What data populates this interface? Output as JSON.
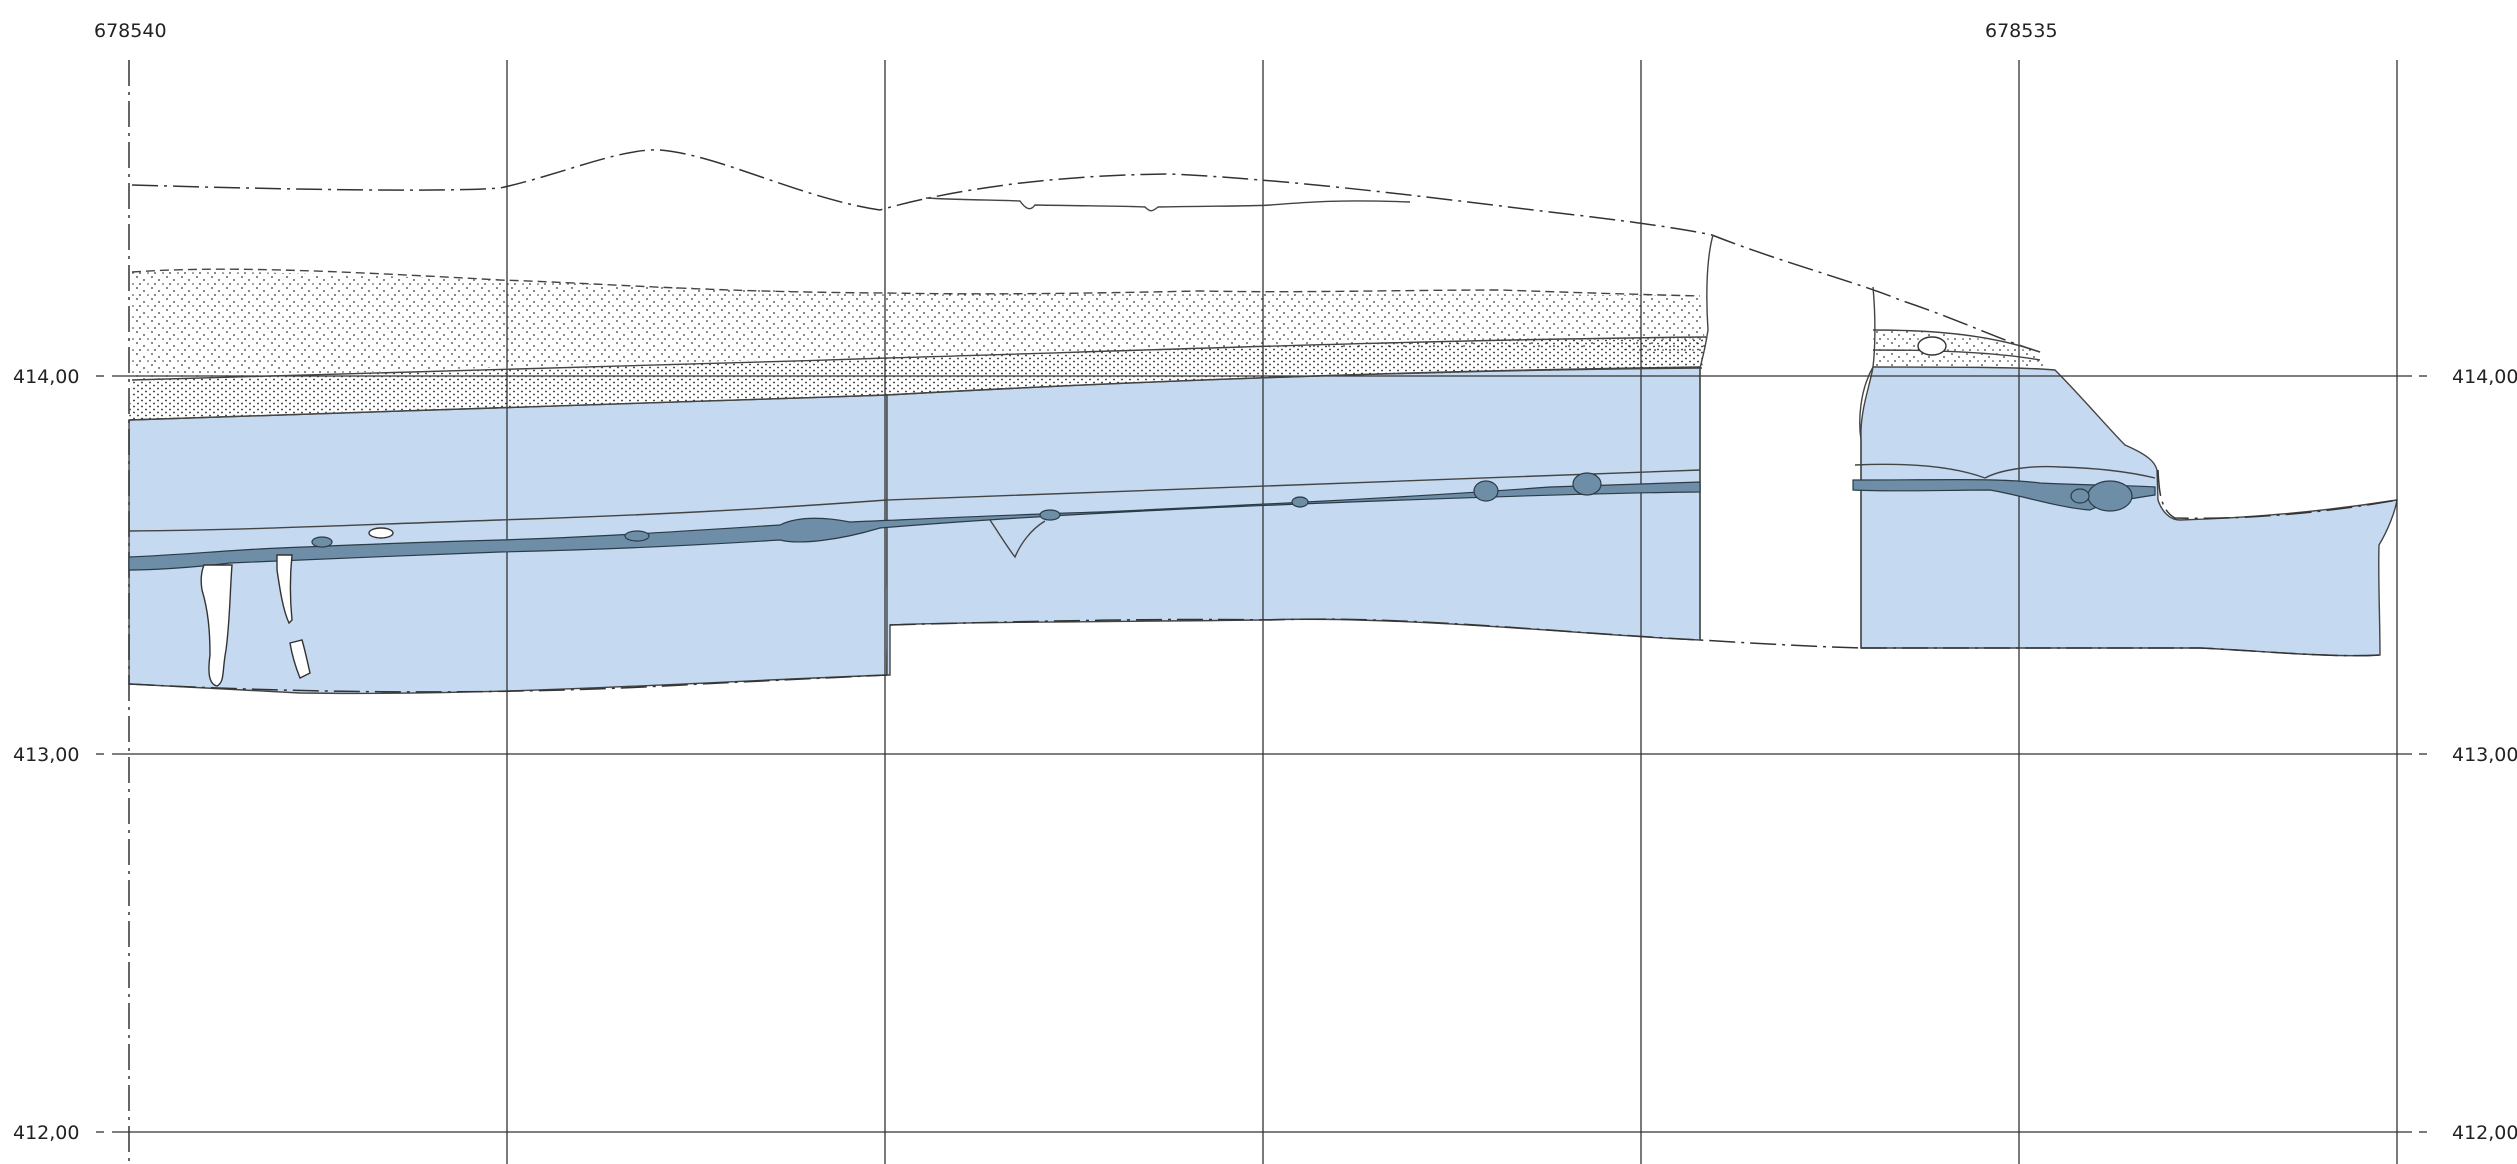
{
  "x_axis": {
    "labels": [
      "678540",
      "678535"
    ]
  },
  "y_axis": {
    "labels": [
      "414,00",
      "413,00",
      "412,00"
    ]
  },
  "colors": {
    "layer_fill": "#c5d9f0",
    "stone_fill": "#6d8ea6",
    "line": "#333333"
  }
}
